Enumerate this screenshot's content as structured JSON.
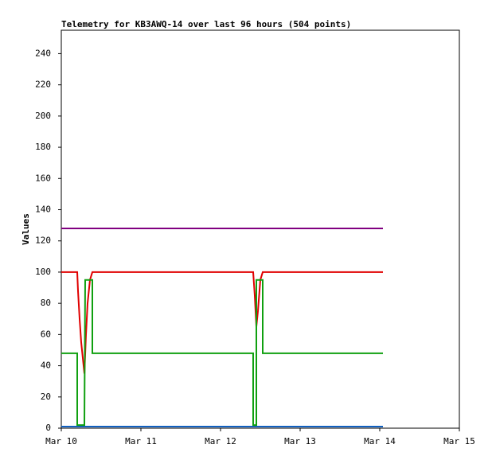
{
  "chart_data": {
    "type": "line",
    "title": "Telemetry for KB3AWQ-14 over last 96 hours (504 points)",
    "y_label": "Values",
    "xlim": [
      10,
      15
    ],
    "xticks": [
      {
        "value": 10,
        "label": "Mar 10"
      },
      {
        "value": 11,
        "label": "Mar 11"
      },
      {
        "value": 12,
        "label": "Mar 12"
      },
      {
        "value": 13,
        "label": "Mar 13"
      },
      {
        "value": 14,
        "label": "Mar 14"
      },
      {
        "value": 15,
        "label": "Mar 15"
      }
    ],
    "ylim": [
      0,
      255
    ],
    "yticks": [
      0,
      20,
      40,
      60,
      80,
      100,
      120,
      140,
      160,
      180,
      200,
      220,
      240
    ],
    "series": [
      {
        "color": "#800080",
        "x": [
          10,
          14.04
        ],
        "values": [
          128,
          128
        ]
      },
      {
        "color": "#1060c0",
        "x": [
          10,
          14.04
        ],
        "values": [
          1,
          1
        ]
      },
      {
        "color": "#e00000",
        "x": [
          10,
          10.2,
          10.21,
          10.23,
          10.25,
          10.27,
          10.29,
          10.31,
          10.33,
          10.36,
          10.39,
          12.41,
          12.43,
          12.45,
          12.47,
          12.5,
          12.53,
          14.04
        ],
        "values": [
          100,
          100,
          88,
          70,
          55,
          45,
          35,
          60,
          80,
          95,
          100,
          100,
          85,
          65,
          75,
          95,
          100,
          100
        ]
      },
      {
        "color": "#10a010",
        "x": [
          10,
          10.2,
          10.2,
          10.29,
          10.3,
          10.39,
          10.39,
          12.41,
          12.41,
          12.45,
          12.45,
          12.53,
          12.53,
          14.04
        ],
        "values": [
          48,
          48,
          2,
          2,
          95,
          95,
          48,
          48,
          2,
          2,
          95,
          95,
          48,
          48
        ]
      }
    ]
  }
}
